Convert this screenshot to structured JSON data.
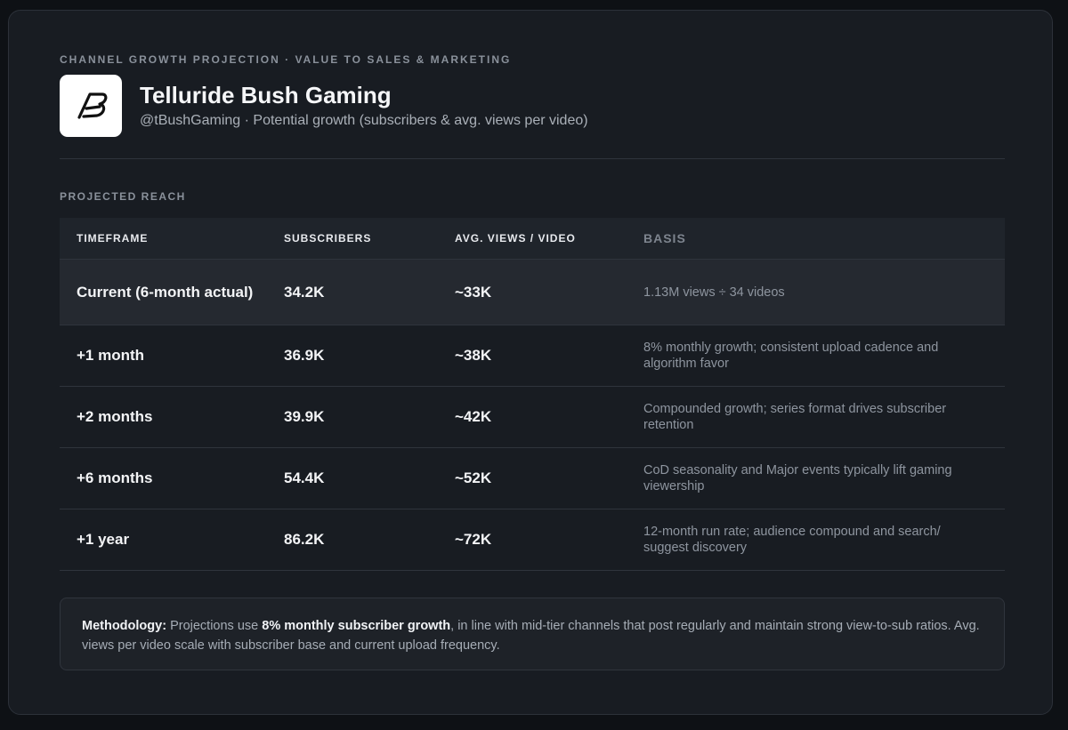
{
  "header": {
    "eyebrow": "CHANNEL GROWTH PROJECTION · VALUE TO SALES & MARKETING",
    "title": "Telluride Bush Gaming",
    "subtitle": "@tBushGaming · Potential growth (subscribers & avg. views per video)"
  },
  "section_label": "PROJECTED REACH",
  "table": {
    "headers": [
      "TIMEFRAME",
      "SUBSCRIBERS",
      "AVG. VIEWS / VIDEO",
      "BASIS"
    ],
    "rows": [
      [
        "Current (6-month actual)",
        "34.2K",
        "~33K",
        "1.13M views ÷ 34 videos"
      ],
      [
        "+1 month",
        "36.9K",
        "~38K",
        "8% monthly growth; consistent upload cadence and algorithm favor"
      ],
      [
        "+2 months",
        "39.9K",
        "~42K",
        "Compounded growth; series format drives subscriber retention"
      ],
      [
        "+6 months",
        "54.4K",
        "~52K",
        "CoD seasonality and Major events typically lift gaming viewership"
      ],
      [
        "+1 year",
        "86.2K",
        "~72K",
        "12-month run rate; audience compound and search/ suggest discovery"
      ]
    ]
  },
  "methodology": {
    "label": "Methodology:",
    "parts": [
      "Projections use",
      "8% monthly subscriber growth",
      ", in line with mid-tier channels that post regularly and maintain strong view-to-sub ratios. Avg. views per video scale with subscriber base and current upload frequency."
    ]
  }
}
